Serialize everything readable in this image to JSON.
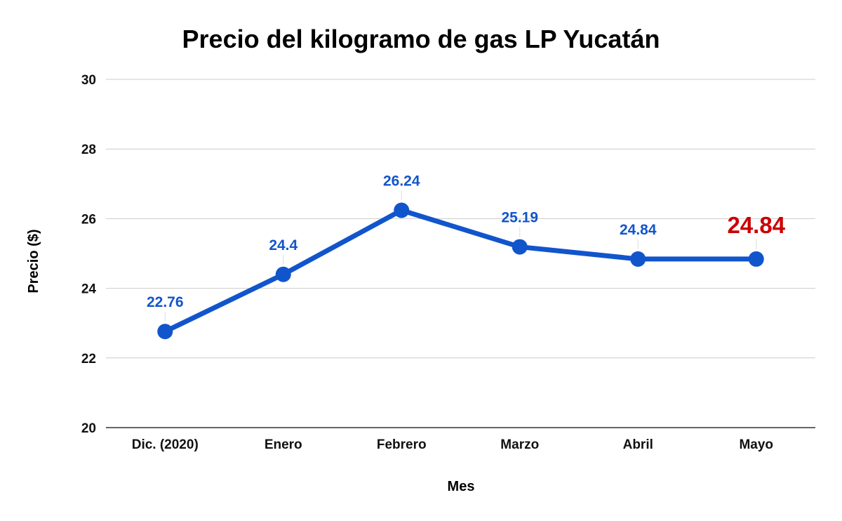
{
  "chart_data": {
    "type": "line",
    "title": "Precio del kilogramo de gas LP Yucatán",
    "xlabel": "Mes",
    "ylabel": "Precio ($)",
    "categories": [
      "Dic. (2020)",
      "Enero",
      "Febrero",
      "Marzo",
      "Abril",
      "Mayo"
    ],
    "series": [
      {
        "values": [
          22.76,
          24.4,
          26.24,
          25.19,
          24.84,
          24.84
        ],
        "data_labels": [
          "22.76",
          "24.4",
          "26.24",
          "25.19",
          "24.84",
          "24.84"
        ]
      }
    ],
    "ylim": [
      20,
      30
    ],
    "yticks": [
      "20",
      "22",
      "24",
      "26",
      "28",
      "30"
    ],
    "grid": "horizontal",
    "legend": "none",
    "highlighted_point": "Mayo"
  },
  "colors": {
    "line": "#1155cc",
    "data_label": "#1155cc",
    "highlight_label": "#cc0000",
    "gridline": "#cccccc",
    "axis_line": "#333333",
    "leader_line": "#dddddd"
  }
}
